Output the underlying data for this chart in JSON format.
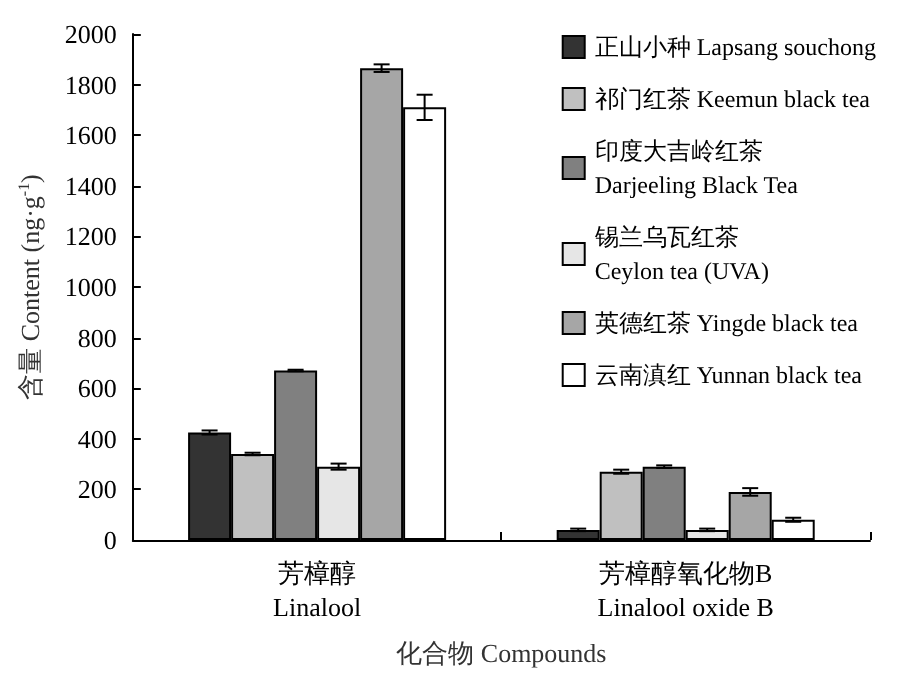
{
  "chart_data": {
    "type": "bar",
    "xlabel": "化合物 Compounds",
    "ylabel": "含量 Content (ng·g$^{-1}$)",
    "categories": [
      "芳樟醇\nLinalool",
      "芳樟醇氧化物B\nLinalool oxide B"
    ],
    "series": [
      {
        "name": "正山小种 Lapsang souchong",
        "color": "#333333",
        "values": [
          425,
          40
        ],
        "errors": [
          8,
          5
        ]
      },
      {
        "name": "祁门红茶 Keemun black tea",
        "color": "#c0c0c0",
        "values": [
          340,
          270
        ],
        "errors": [
          5,
          8
        ]
      },
      {
        "name": "印度大吉岭红茶\nDarjeeling Black Tea",
        "color": "#808080",
        "values": [
          670,
          290
        ],
        "errors": [
          3,
          5
        ]
      },
      {
        "name": "锡兰乌瓦红茶\nCeylon tea (UVA)",
        "color": "#e6e6e6",
        "values": [
          290,
          40
        ],
        "errors": [
          12,
          5
        ]
      },
      {
        "name": "英德红茶 Yingde black tea",
        "color": "#a6a6a6",
        "values": [
          1865,
          190
        ],
        "errors": [
          15,
          15
        ]
      },
      {
        "name": "云南滇红 Yunnan black tea",
        "color": "#ffffff",
        "values": [
          1710,
          80
        ],
        "errors": [
          50,
          8
        ]
      }
    ],
    "ylim": [
      0,
      2000
    ],
    "yticks": [
      0,
      200,
      400,
      600,
      800,
      1000,
      1200,
      1400,
      1600,
      1800,
      2000
    ],
    "grid": false,
    "legend": "top right"
  }
}
